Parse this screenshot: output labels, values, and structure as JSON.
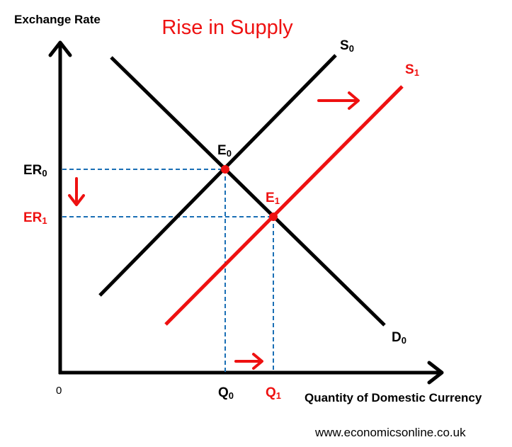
{
  "title": "Rise in Supply",
  "y_axis_label": "Exchange Rate",
  "x_axis_label": "Quantity of Domestic Currency",
  "origin_label": "0",
  "curves": {
    "supply_initial": {
      "label": "S",
      "subscript": "0",
      "color": "#000000"
    },
    "supply_new": {
      "label": "S",
      "subscript": "1",
      "color": "#ee1111"
    },
    "demand": {
      "label": "D",
      "subscript": "0",
      "color": "#000000"
    }
  },
  "equilibria": {
    "initial": {
      "label": "E",
      "subscript": "0"
    },
    "new": {
      "label": "E",
      "subscript": "1"
    }
  },
  "y_ticks": {
    "initial": {
      "label": "ER",
      "subscript": "0"
    },
    "new": {
      "label": "ER",
      "subscript": "1"
    }
  },
  "x_ticks": {
    "initial": {
      "label": "Q",
      "subscript": "0"
    },
    "new": {
      "label": "Q",
      "subscript": "1"
    }
  },
  "source": "www.economicsonline.co.uk",
  "colors": {
    "accent": "#ee1111",
    "guide": "#1a6fb5",
    "axis": "#000000"
  }
}
